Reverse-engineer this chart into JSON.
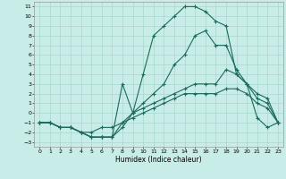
{
  "xlabel": "Humidex (Indice chaleur)",
  "bg_color": "#c8ece8",
  "grid_color": "#a8d8cc",
  "line_color": "#1a6b5a",
  "xlim": [
    -0.5,
    23.5
  ],
  "ylim": [
    -3.5,
    11.5
  ],
  "xticks": [
    0,
    1,
    2,
    3,
    4,
    5,
    6,
    7,
    8,
    9,
    10,
    11,
    12,
    13,
    14,
    15,
    16,
    17,
    18,
    19,
    20,
    21,
    22,
    23
  ],
  "yticks": [
    -3,
    -2,
    -1,
    0,
    1,
    2,
    3,
    4,
    5,
    6,
    7,
    8,
    9,
    10,
    11
  ],
  "line_top_x": [
    0,
    1,
    2,
    3,
    4,
    5,
    6,
    7,
    8,
    9,
    10,
    11,
    12,
    13,
    14,
    15,
    16,
    17,
    18,
    19,
    20,
    21,
    22,
    23
  ],
  "line_top_y": [
    -1,
    -1,
    -1.5,
    -1.5,
    -2,
    -2.5,
    -2.5,
    -2.5,
    -1.5,
    0,
    4,
    8,
    9,
    10,
    11,
    11,
    10.5,
    9.5,
    9,
    4,
    3,
    2,
    1.5,
    -1
  ],
  "line_mid1_x": [
    0,
    1,
    2,
    3,
    4,
    5,
    6,
    7,
    8,
    9,
    10,
    11,
    12,
    13,
    14,
    15,
    16,
    17,
    18,
    19,
    20,
    21,
    22,
    23
  ],
  "line_mid1_y": [
    -1,
    -1,
    -1.5,
    -1.5,
    -2,
    -2.5,
    -2.5,
    -2.5,
    3,
    0,
    1,
    2,
    3,
    5,
    6,
    8,
    8.5,
    7,
    7,
    4.5,
    3,
    -0.5,
    -1.5,
    -1
  ],
  "line_mid2_x": [
    0,
    1,
    2,
    3,
    4,
    5,
    6,
    7,
    8,
    9,
    10,
    11,
    12,
    13,
    14,
    15,
    16,
    17,
    18,
    19,
    20,
    21,
    22,
    23
  ],
  "line_mid2_y": [
    -1,
    -1,
    -1.5,
    -1.5,
    -2,
    -2.5,
    -2.5,
    -2.5,
    -1,
    0,
    0.5,
    1,
    1.5,
    2,
    2.5,
    3,
    3,
    3,
    4.5,
    4,
    3,
    1.5,
    1,
    -1
  ],
  "line_bot_x": [
    0,
    1,
    2,
    3,
    4,
    5,
    6,
    7,
    8,
    9,
    10,
    11,
    12,
    13,
    14,
    15,
    16,
    17,
    18,
    19,
    20,
    21,
    22,
    23
  ],
  "line_bot_y": [
    -1,
    -1,
    -1.5,
    -1.5,
    -2,
    -2,
    -1.5,
    -1.5,
    -1,
    -0.5,
    0,
    0.5,
    1,
    1.5,
    2,
    2,
    2,
    2,
    2.5,
    2.5,
    2,
    1,
    0.5,
    -1
  ]
}
